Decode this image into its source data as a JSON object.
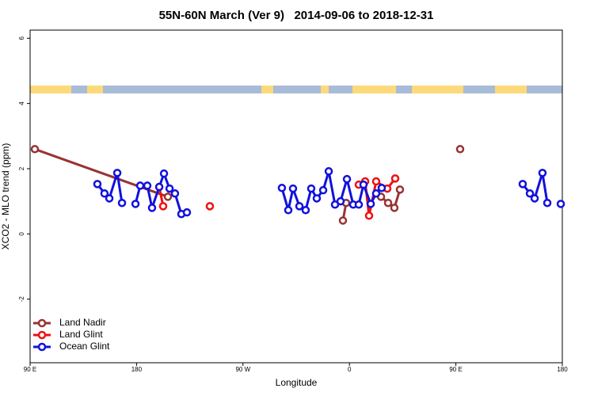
{
  "chart_data": {
    "type": "line",
    "title": "55N-60N March (Ver 9)   2014-09-06 to 2018-12-31",
    "x_label": "Longitude",
    "y_label": "XCO2 - MLO trend (ppm)",
    "xlim": [
      90,
      540
    ],
    "ylim": [
      -3.95,
      6.25
    ],
    "xticks": [
      {
        "value": 90,
        "label": "90 E"
      },
      180,
      {
        "value": 270,
        "label": "90 W"
      },
      {
        "value": 360,
        "label": "0"
      },
      {
        "value": 450,
        "label": "90 E"
      },
      {
        "value": 540,
        "label": "180"
      }
    ],
    "yticks": [
      -2,
      0,
      2,
      4,
      6
    ],
    "legend": "bottom-left",
    "series": [
      {
        "name": "Land Nadir",
        "color": "#993333",
        "x": [
          94.0,
          206.5,
          null,
          354.5,
          357.2,
          null,
          386.7,
          392.7,
          398.0,
          402.7,
          null,
          453.6
        ],
        "values": [
          2.6,
          1.14,
          null,
          0.41,
          0.95,
          null,
          1.14,
          0.95,
          0.8,
          1.36,
          null,
          2.6
        ]
      },
      {
        "name": "Land Glint",
        "color": "#ee1111",
        "x": [
          199.2,
          202.5,
          null,
          242.0,
          null,
          367.9,
          373.3,
          376.6,
          382.6,
          392.0,
          398.7
        ],
        "values": [
          1.44,
          0.85,
          null,
          0.85,
          null,
          1.51,
          1.61,
          0.56,
          1.61,
          1.39,
          1.7
        ]
      },
      {
        "name": "Ocean Glint",
        "color": "#1111dd",
        "x": [
          146.9,
          152.9,
          157.0,
          163.7,
          167.7,
          null,
          179.1,
          183.1,
          189.1,
          193.1,
          199.2,
          203.2,
          207.9,
          212.5,
          217.9,
          222.6,
          null,
          302.9,
          308.3,
          312.3,
          317.7,
          323.0,
          327.7,
          332.4,
          337.8,
          342.5,
          347.8,
          352.5,
          357.9,
          363.2,
          367.9,
          371.9,
          378.0,
          382.6,
          387.3,
          null,
          506.5,
          512.6,
          516.6,
          523.2,
          527.3,
          null,
          538.7
        ],
        "values": [
          1.53,
          1.24,
          1.09,
          1.87,
          0.95,
          null,
          0.92,
          1.48,
          1.48,
          0.8,
          1.44,
          1.85,
          1.39,
          1.24,
          0.61,
          0.66,
          null,
          1.41,
          0.73,
          1.39,
          0.85,
          0.73,
          1.39,
          1.09,
          1.34,
          1.92,
          0.9,
          1.0,
          1.68,
          0.9,
          0.9,
          1.51,
          0.92,
          1.24,
          1.41,
          null,
          1.53,
          1.24,
          1.09,
          1.87,
          0.95,
          null,
          0.92
        ]
      }
    ]
  }
}
